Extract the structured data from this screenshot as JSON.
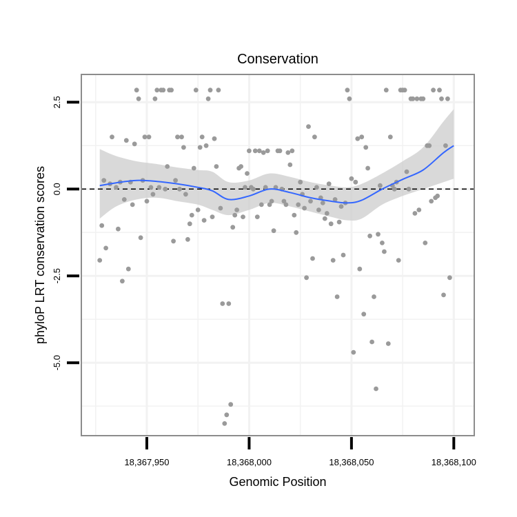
{
  "chart_data": {
    "type": "scatter",
    "title": "Conservation",
    "xlabel": "Genomic Position",
    "ylabel": "phyloP LRT conservation scores",
    "xlim": [
      18367918,
      18368110
    ],
    "ylim": [
      -7.1,
      3.3
    ],
    "xticks": [
      18367950,
      18368000,
      18368050,
      18368100
    ],
    "xtick_labels": [
      "18,367,950",
      "18,368,000",
      "18,368,050",
      "18,368,100"
    ],
    "yticks": [
      2.5,
      0.0,
      -2.5,
      -5.0
    ],
    "ytick_labels": [
      "2.5",
      "0.0",
      "-2.5",
      "-5.0"
    ],
    "grid": true,
    "reference_line": {
      "y": 0,
      "style": "dashed",
      "color": "#000000"
    },
    "colors": {
      "points": "#9a9a9a",
      "smooth_line": "#3366ff",
      "confidence_band": "#cccccc",
      "panel_border": "#8c8c8c",
      "grid": "#f2f2f2"
    },
    "series": [
      {
        "kind": "points",
        "points": [
          [
            18367927,
            -2.05
          ],
          [
            18367928,
            -1.05
          ],
          [
            18367929,
            0.25
          ],
          [
            18367930,
            -1.7
          ],
          [
            18367932,
            0.15
          ],
          [
            18367933,
            1.5
          ],
          [
            18367935,
            0.05
          ],
          [
            18367936,
            -1.15
          ],
          [
            18367937,
            0.2
          ],
          [
            18367938,
            -2.65
          ],
          [
            18367939,
            -0.3
          ],
          [
            18367940,
            1.4
          ],
          [
            18367941,
            -2.3
          ],
          [
            18367942,
            0.2
          ],
          [
            18367943,
            -0.45
          ],
          [
            18367944,
            1.3
          ],
          [
            18367945,
            2.85
          ],
          [
            18367946,
            2.6
          ],
          [
            18367947,
            -1.4
          ],
          [
            18367948,
            0.25
          ],
          [
            18367949,
            1.5
          ],
          [
            18367950,
            -0.35
          ],
          [
            18367951,
            1.5
          ],
          [
            18367952,
            0.05
          ],
          [
            18367953,
            -0.15
          ],
          [
            18367954,
            2.6
          ],
          [
            18367955,
            2.85
          ],
          [
            18367956,
            0.05
          ],
          [
            18367957,
            2.85
          ],
          [
            18367958,
            2.85
          ],
          [
            18367959,
            0.0
          ],
          [
            18367960,
            0.65
          ],
          [
            18367961,
            2.85
          ],
          [
            18367962,
            2.85
          ],
          [
            18367963,
            -1.5
          ],
          [
            18367964,
            0.25
          ],
          [
            18367965,
            1.5
          ],
          [
            18367966,
            0.0
          ],
          [
            18367967,
            1.5
          ],
          [
            18367968,
            1.2
          ],
          [
            18367969,
            -0.15
          ],
          [
            18367970,
            -1.45
          ],
          [
            18367971,
            -1.0
          ],
          [
            18367972,
            -0.75
          ],
          [
            18367973,
            0.6
          ],
          [
            18367974,
            2.85
          ],
          [
            18367975,
            -0.6
          ],
          [
            18367976,
            1.2
          ],
          [
            18367977,
            1.5
          ],
          [
            18367978,
            -0.9
          ],
          [
            18367979,
            1.25
          ],
          [
            18367980,
            2.6
          ],
          [
            18367981,
            2.85
          ],
          [
            18367982,
            -0.8
          ],
          [
            18367983,
            1.45
          ],
          [
            18367984,
            0.65
          ],
          [
            18367985,
            2.85
          ],
          [
            18367986,
            -0.55
          ],
          [
            18367987,
            -3.3
          ],
          [
            18367988,
            -6.75
          ],
          [
            18367989,
            -6.5
          ],
          [
            18367990,
            -3.3
          ],
          [
            18367991,
            -6.2
          ],
          [
            18367992,
            -1.1
          ],
          [
            18367993,
            -0.75
          ],
          [
            18367994,
            -0.6
          ],
          [
            18367995,
            0.6
          ],
          [
            18367996,
            0.65
          ],
          [
            18367997,
            -0.8
          ],
          [
            18367998,
            0.05
          ],
          [
            18367999,
            0.45
          ],
          [
            18368000,
            1.1
          ],
          [
            18368001,
            0.05
          ],
          [
            18368002,
            0.0
          ],
          [
            18368003,
            1.1
          ],
          [
            18368004,
            -0.8
          ],
          [
            18368005,
            1.1
          ],
          [
            18368006,
            -0.45
          ],
          [
            18368007,
            1.05
          ],
          [
            18368008,
            0.05
          ],
          [
            18368009,
            1.1
          ],
          [
            18368010,
            -0.45
          ],
          [
            18368011,
            -0.35
          ],
          [
            18368012,
            -1.2
          ],
          [
            18368013,
            0.05
          ],
          [
            18368014,
            1.1
          ],
          [
            18368015,
            1.1
          ],
          [
            18368016,
            0.0
          ],
          [
            18368017,
            -0.35
          ],
          [
            18368018,
            -0.45
          ],
          [
            18368019,
            1.05
          ],
          [
            18368020,
            0.7
          ],
          [
            18368021,
            1.1
          ],
          [
            18368022,
            -0.75
          ],
          [
            18368023,
            -1.25
          ],
          [
            18368024,
            -0.45
          ],
          [
            18368025,
            0.2
          ],
          [
            18368026,
            -0.15
          ],
          [
            18368027,
            -0.55
          ],
          [
            18368028,
            -2.55
          ],
          [
            18368029,
            1.8
          ],
          [
            18368030,
            -0.35
          ],
          [
            18368031,
            -2.0
          ],
          [
            18368032,
            1.5
          ],
          [
            18368033,
            0.05
          ],
          [
            18368034,
            -0.6
          ],
          [
            18368035,
            -0.25
          ],
          [
            18368036,
            -0.4
          ],
          [
            18368037,
            -0.85
          ],
          [
            18368038,
            -0.7
          ],
          [
            18368039,
            0.15
          ],
          [
            18368040,
            -1.0
          ],
          [
            18368041,
            -2.05
          ],
          [
            18368042,
            -0.3
          ],
          [
            18368043,
            -3.1
          ],
          [
            18368044,
            -0.95
          ],
          [
            18368045,
            -0.5
          ],
          [
            18368046,
            -1.9
          ],
          [
            18368047,
            -0.4
          ],
          [
            18368048,
            2.85
          ],
          [
            18368049,
            2.6
          ],
          [
            18368050,
            0.3
          ],
          [
            18368051,
            -4.7
          ],
          [
            18368052,
            0.2
          ],
          [
            18368053,
            1.45
          ],
          [
            18368054,
            -2.3
          ],
          [
            18368055,
            1.5
          ],
          [
            18368056,
            -3.6
          ],
          [
            18368057,
            1.2
          ],
          [
            18368058,
            0.6
          ],
          [
            18368059,
            -1.35
          ],
          [
            18368060,
            -4.4
          ],
          [
            18368061,
            -3.1
          ],
          [
            18368062,
            -5.75
          ],
          [
            18368063,
            -1.3
          ],
          [
            18368064,
            0.1
          ],
          [
            18368065,
            -1.55
          ],
          [
            18368066,
            -1.8
          ],
          [
            18368067,
            2.85
          ],
          [
            18368068,
            -4.45
          ],
          [
            18368069,
            1.5
          ],
          [
            18368070,
            0.1
          ],
          [
            18368071,
            0.0
          ],
          [
            18368072,
            0.2
          ],
          [
            18368073,
            -2.05
          ],
          [
            18368074,
            2.85
          ],
          [
            18368075,
            2.85
          ],
          [
            18368076,
            2.85
          ],
          [
            18368077,
            0.5
          ],
          [
            18368078,
            0.0
          ],
          [
            18368079,
            2.6
          ],
          [
            18368080,
            2.6
          ],
          [
            18368081,
            -0.7
          ],
          [
            18368082,
            2.6
          ],
          [
            18368083,
            -0.6
          ],
          [
            18368084,
            2.6
          ],
          [
            18368085,
            2.6
          ],
          [
            18368086,
            -1.55
          ],
          [
            18368087,
            1.25
          ],
          [
            18368088,
            1.25
          ],
          [
            18368089,
            -0.35
          ],
          [
            18368090,
            2.85
          ],
          [
            18368091,
            -0.25
          ],
          [
            18368092,
            -0.2
          ],
          [
            18368093,
            2.85
          ],
          [
            18368094,
            2.6
          ],
          [
            18368095,
            -3.05
          ],
          [
            18368096,
            1.25
          ],
          [
            18368097,
            2.6
          ],
          [
            18368098,
            -2.55
          ]
        ]
      },
      {
        "kind": "smooth",
        "x": [
          18367927,
          18367935,
          18367945,
          18367955,
          18367965,
          18367975,
          18367982,
          18367990,
          18368000,
          18368010,
          18368020,
          18368030,
          18368040,
          18368048,
          18368055,
          18368065,
          18368075,
          18368085,
          18368095,
          18368100
        ],
        "y": [
          0.1,
          0.18,
          0.25,
          0.22,
          0.15,
          0.05,
          -0.05,
          -0.3,
          -0.2,
          0.0,
          -0.1,
          -0.25,
          -0.35,
          -0.4,
          -0.32,
          0.0,
          0.28,
          0.55,
          1.05,
          1.25
        ],
        "ymin": [
          -0.85,
          -0.5,
          -0.3,
          -0.25,
          -0.35,
          -0.45,
          -0.6,
          -0.75,
          -0.6,
          -0.4,
          -0.5,
          -0.65,
          -0.8,
          -0.9,
          -0.85,
          -0.45,
          -0.2,
          0.0,
          0.2,
          0.3
        ],
        "ymax": [
          1.15,
          0.95,
          0.8,
          0.72,
          0.62,
          0.55,
          0.5,
          0.2,
          0.25,
          0.45,
          0.35,
          0.2,
          0.1,
          0.05,
          0.15,
          0.45,
          0.8,
          1.2,
          1.95,
          2.3
        ]
      }
    ]
  }
}
